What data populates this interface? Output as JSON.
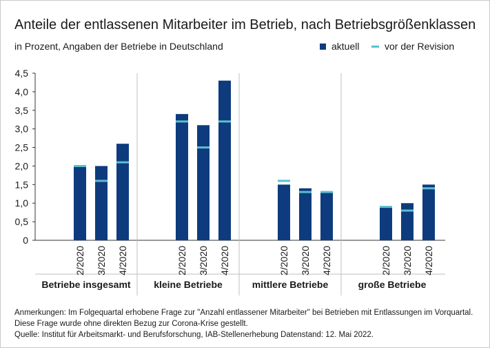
{
  "title": "Anteile der entlassenen Mitarbeiter im Betrieb, nach Betriebsgrößenklassen",
  "subtitle": "in Prozent, Angaben der Betriebe in Deutschland",
  "legend": {
    "current": "aktuell",
    "before_revision": "vor der Revision"
  },
  "colors": {
    "bar": "#0d3b7d",
    "revision_marker": "#5bbfcf",
    "grid": "#bfbfbf",
    "axis": "#333333"
  },
  "chart_data": {
    "type": "bar",
    "title": "Anteile der entlassenen Mitarbeiter im Betrieb, nach Betriebsgrößenklassen",
    "ylabel": "in Prozent",
    "ylim": [
      0,
      4.5
    ],
    "yticks": [
      "0",
      "0,5",
      "1,0",
      "1,5",
      "2,0",
      "2,5",
      "3,0",
      "3,5",
      "4,0",
      "4,5"
    ],
    "groups": [
      {
        "name": "Betriebe insgesamt",
        "categories": [
          "2/2020",
          "3/2020",
          "4/2020"
        ],
        "current": [
          2.0,
          2.0,
          2.6
        ],
        "before_revision": [
          2.0,
          1.6,
          2.1
        ]
      },
      {
        "name": "kleine Betriebe",
        "categories": [
          "2/2020",
          "3/2020",
          "4/2020"
        ],
        "current": [
          3.4,
          3.1,
          4.3
        ],
        "before_revision": [
          3.2,
          2.5,
          3.2
        ]
      },
      {
        "name": "mittlere Betriebe",
        "categories": [
          "2/2020",
          "3/2020",
          "4/2020"
        ],
        "current": [
          1.5,
          1.4,
          1.3
        ],
        "before_revision": [
          1.6,
          1.3,
          1.3
        ]
      },
      {
        "name": "große Betriebe",
        "categories": [
          "2/2020",
          "3/2020",
          "4/2020"
        ],
        "current": [
          0.9,
          1.0,
          1.5
        ],
        "before_revision": [
          0.9,
          0.8,
          1.4
        ]
      }
    ]
  },
  "notes": {
    "line1": "Anmerkungen: Im Folgequartal erhobene Frage zur \"Anzahl entlassener Mitarbeiter\" bei Betrieben mit Entlassungen im Vorquartal.",
    "line2": "Diese Frage wurde ohne direkten Bezug zur Corona-Krise gestellt.",
    "line3": "Quelle: Institut für Arbeitsmarkt- und Berufsforschung, IAB-Stellenerhebung Datenstand: 12. Mai 2022."
  }
}
